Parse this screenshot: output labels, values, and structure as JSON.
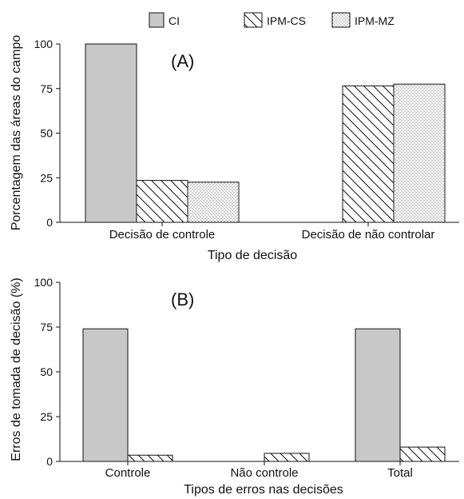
{
  "legend": {
    "placement": "top",
    "entries": [
      {
        "label": "CI",
        "pattern": "solid",
        "color": "#c8c8c8"
      },
      {
        "label": "IPM-CS",
        "pattern": "diagonal-hatch",
        "color": "#111111"
      },
      {
        "label": "IPM-MZ",
        "pattern": "dotted",
        "color": "#555555"
      }
    ]
  },
  "chart_data": [
    {
      "type": "bar",
      "panel_label": "(A)",
      "categories": [
        "Decisão de controle",
        "Decisão de não controlar"
      ],
      "series": [
        {
          "name": "CI",
          "values": [
            100,
            0
          ]
        },
        {
          "name": "IPM-CS",
          "values": [
            23.5,
            76.5
          ]
        },
        {
          "name": "IPM-MZ",
          "values": [
            22.5,
            77.5
          ]
        }
      ],
      "xlabel": "Tipo de decisão",
      "ylabel": "Porcentagem das áreas do campo",
      "ylim": [
        0,
        100
      ],
      "yticks": [
        0,
        25,
        50,
        75,
        100
      ],
      "grid": false
    },
    {
      "type": "bar",
      "panel_label": "(B)",
      "categories": [
        "Controle",
        "Não controle",
        "Total"
      ],
      "series": [
        {
          "name": "CI",
          "values": [
            74,
            0,
            74
          ]
        },
        {
          "name": "IPM-CS",
          "values": [
            3.5,
            4.5,
            8
          ]
        }
      ],
      "xlabel": "Tipos de erros nas decisões",
      "ylabel": "Erros de tomada de decisão (%)",
      "ylim": [
        0,
        100
      ],
      "yticks": [
        0,
        25,
        50,
        75,
        100
      ],
      "grid": false
    }
  ]
}
